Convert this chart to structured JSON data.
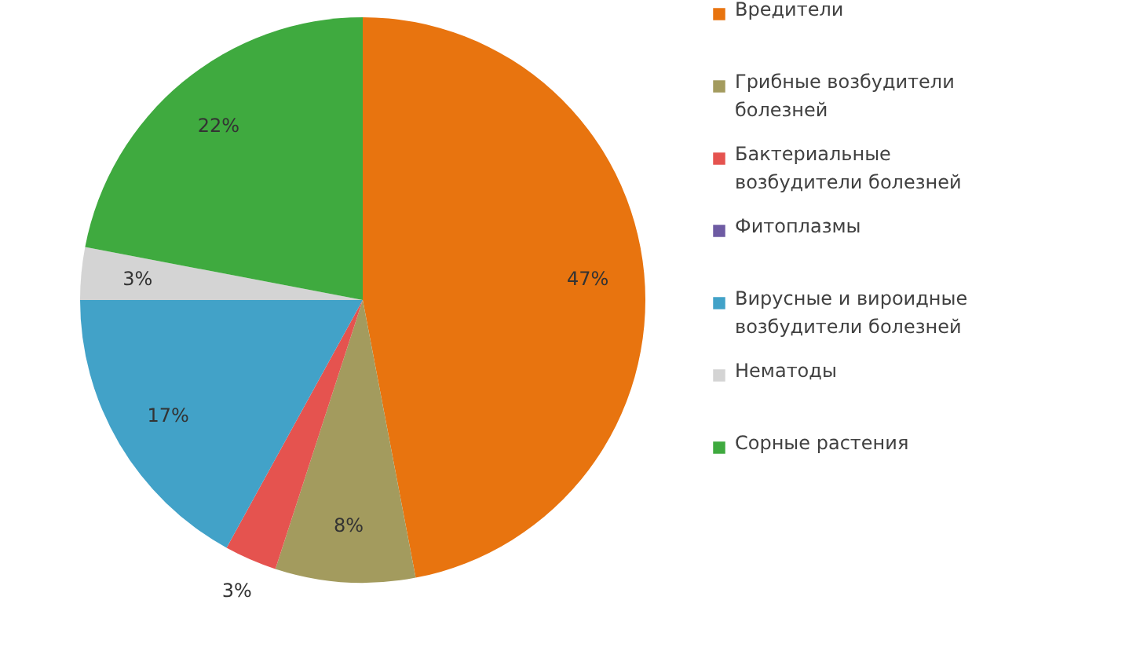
{
  "chart_data": {
    "type": "pie",
    "categories": [
      "Вредители",
      "Грибные возбудители болезней",
      "Бактериальные возбудители болезней",
      "Фитоплазмы",
      "Вирусные и вироидные возбудители болезней",
      "Нематоды",
      "Сорные растения"
    ],
    "values": [
      47,
      8,
      3,
      0,
      17,
      3,
      22
    ],
    "colors": [
      "#e8740f",
      "#a39b5e",
      "#e5534f",
      "#6e5ba3",
      "#42a2c8",
      "#d4d4d4",
      "#3faa3f"
    ],
    "value_labels": [
      "47%",
      "8%",
      "3%",
      null,
      "17%",
      "3%",
      "22%"
    ],
    "legend": "right"
  }
}
